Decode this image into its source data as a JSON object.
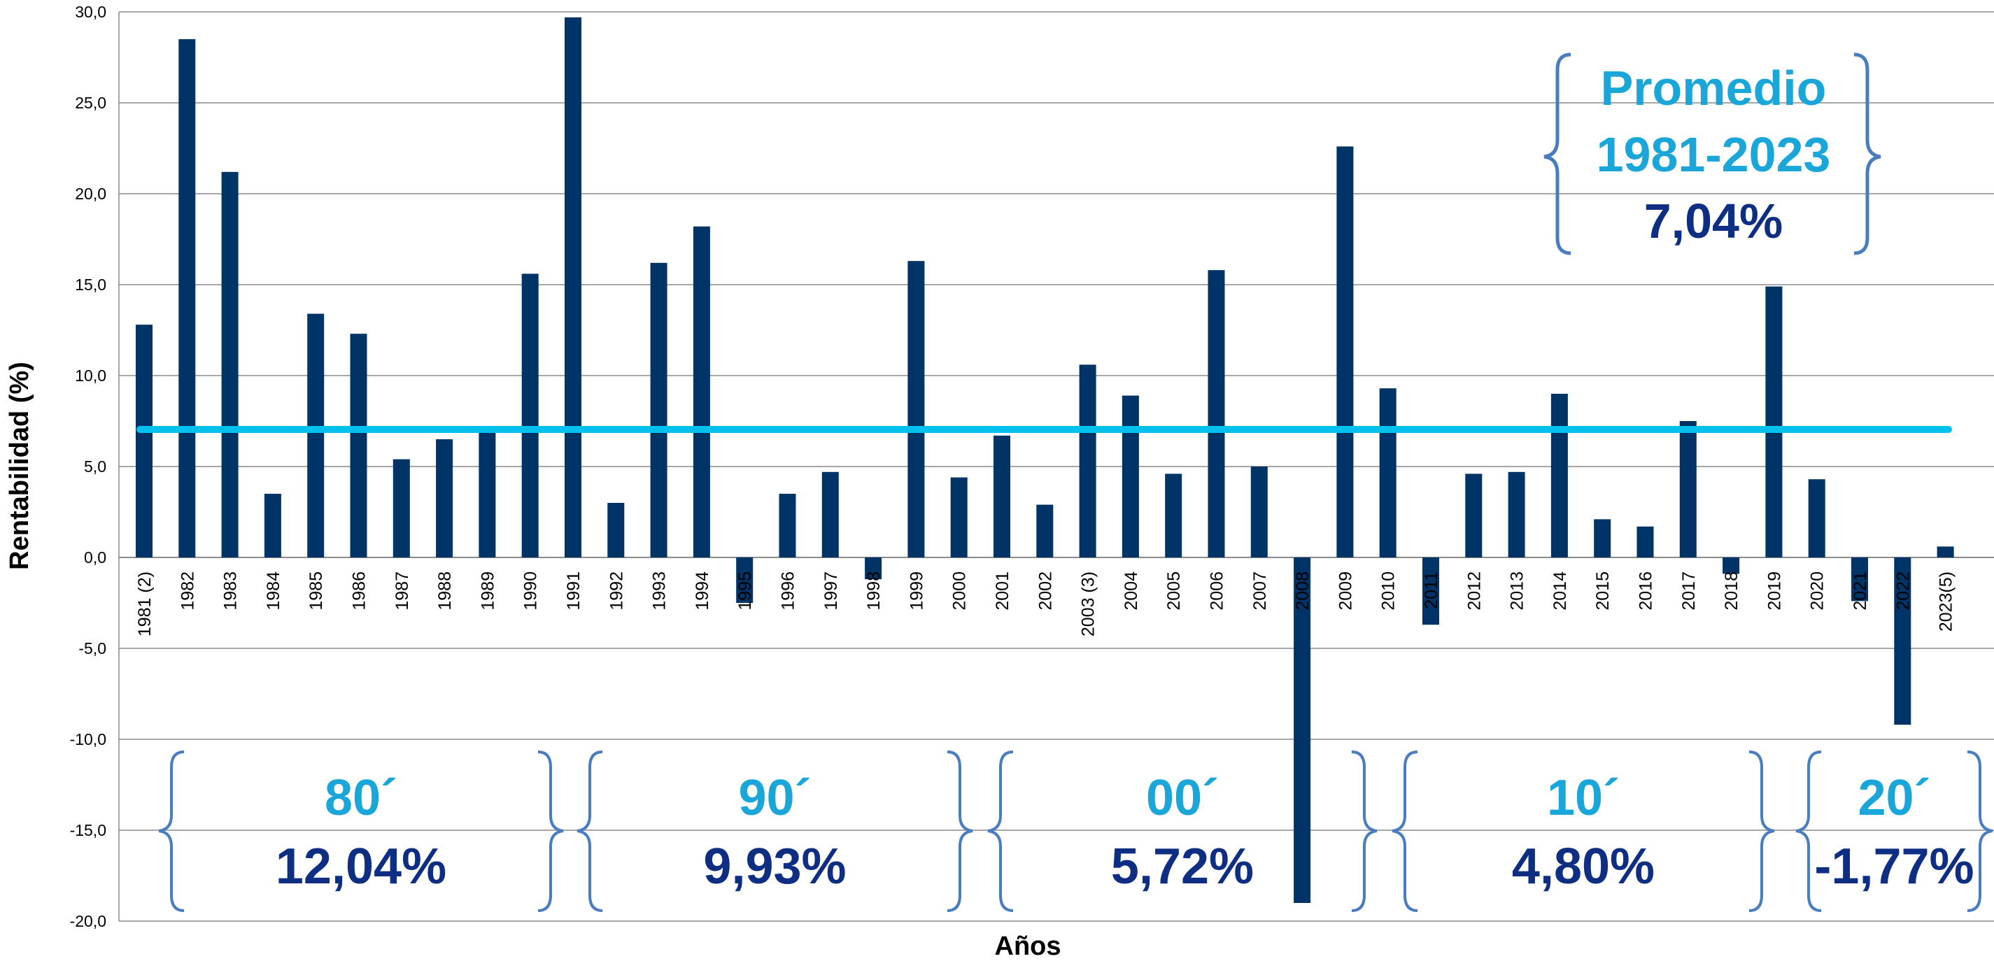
{
  "colors": {
    "bar": "#003366",
    "average_line": "#00C0EE",
    "grid": "#8C8C8C",
    "brace": "#4A7DBF",
    "label_light": "#1AA6D9",
    "label_dark": "#0D2E82"
  },
  "chart_data": {
    "type": "bar",
    "xlabel": "Años",
    "ylabel": "Rentabilidad (%)",
    "ylim": [
      -20,
      30
    ],
    "yticks": [
      "-20,0",
      "-15,0",
      "-10,0",
      "-5,0",
      "0,0",
      "5,0",
      "10,0",
      "15,0",
      "20,0",
      "25,0",
      "30,0"
    ],
    "grid": true,
    "categories": [
      "1981 (2)",
      "1982",
      "1983",
      "1984",
      "1985",
      "1986",
      "1987",
      "1988",
      "1989",
      "1990",
      "1991",
      "1992",
      "1993",
      "1994",
      "1995",
      "1996",
      "1997",
      "1998",
      "1999",
      "2000",
      "2001",
      "2002",
      "2003 (3)",
      "2004",
      "2005",
      "2006",
      "2007",
      "2008",
      "2009",
      "2010",
      "2011",
      "2012",
      "2013",
      "2014",
      "2015",
      "2016",
      "2017",
      "2018",
      "2019",
      "2020",
      "2021",
      "2022",
      "2023(5)"
    ],
    "values": [
      12.8,
      28.5,
      21.2,
      3.5,
      13.4,
      12.3,
      5.4,
      6.5,
      7.0,
      15.6,
      29.7,
      3.0,
      16.2,
      18.2,
      -2.5,
      3.5,
      4.7,
      -1.2,
      16.3,
      4.4,
      6.7,
      2.9,
      10.6,
      8.9,
      4.6,
      15.8,
      5.0,
      -19.0,
      22.6,
      9.3,
      -3.7,
      4.6,
      4.7,
      9.0,
      2.1,
      1.7,
      7.5,
      -0.9,
      14.9,
      4.3,
      -2.4,
      -9.2,
      0.6
    ],
    "average": 7.04,
    "average_box": {
      "title_line1": "Promedio",
      "title_line2": "1981-2023",
      "value": "7,04%"
    },
    "periods": [
      {
        "label": "80´",
        "value": "12,04%"
      },
      {
        "label": "90´",
        "value": "9,93%"
      },
      {
        "label": "00´",
        "value": "5,72%"
      },
      {
        "label": "10´",
        "value": "4,80%"
      },
      {
        "label": "20´",
        "value": "-1,77%"
      }
    ]
  }
}
